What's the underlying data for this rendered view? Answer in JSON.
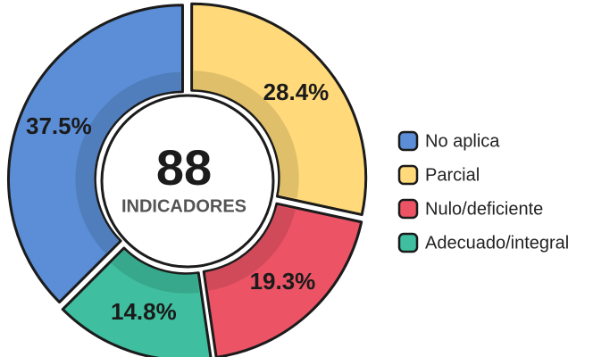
{
  "chart_data": {
    "type": "donut",
    "categories": [
      "No aplica",
      "Parcial",
      "Nulo/deficiente",
      "Adecuado/integral"
    ],
    "values": [
      37.5,
      28.4,
      19.3,
      14.8
    ],
    "value_labels": [
      "37.5%",
      "28.4%",
      "19.3%",
      "14.8%"
    ],
    "colors": [
      "#5b8ed6",
      "#ffd97a",
      "#ec5466",
      "#3fbf9f"
    ],
    "center_value": 88,
    "center_label": "INDICADORES",
    "legend": "right"
  }
}
